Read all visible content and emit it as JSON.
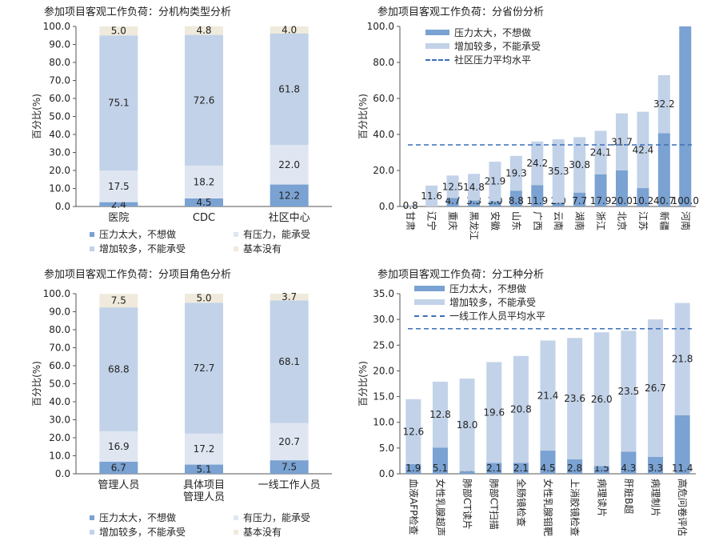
{
  "colors": {
    "dark": "#7aa2d2",
    "mid": "#c2d2e8",
    "light": "#dfe6f1",
    "beige": "#efeadb",
    "dash": "#3d6fb8"
  },
  "panels": {
    "p1": {
      "title": "参加项目客观工作负荷：分机构类型分析"
    },
    "p2": {
      "title": "参加项目客观工作负荷：分省份分析"
    },
    "p3": {
      "title": "参加项目客观工作负荷：分项目角色分析"
    },
    "p4": {
      "title": "参加项目客观工作负荷：分工种分析"
    }
  },
  "legend_bottom": {
    "dark": "压力太大，不想做",
    "mid": "增加较多，不能承受",
    "light": "有压力，能承受",
    "beige": "基本没有"
  },
  "legend_p2": {
    "dark": "压力太大，不想做",
    "mid": "增加较多，不能承受",
    "line": "社区压力平均水平"
  },
  "legend_p4": {
    "dark": "压力太大，不想做",
    "mid": "增加较多，不能承受",
    "line": "一线工作人员平均水平"
  },
  "chart_data": [
    {
      "id": "p1",
      "type": "bar",
      "stacked": true,
      "ylabel": "百分比(%)",
      "ylim": [
        0,
        100
      ],
      "yticks": [
        "0.0",
        "10.0",
        "20.0",
        "30.0",
        "40.0",
        "50.0",
        "60.0",
        "70.0",
        "80.0",
        "90.0",
        "100.0"
      ],
      "categories": [
        "医院",
        "CDC",
        "社区中心"
      ],
      "series": [
        {
          "name": "压力太大，不想做",
          "color_key": "dark",
          "values": [
            2.4,
            4.5,
            12.2
          ],
          "labels": [
            "2.4",
            "4.5",
            "12.2"
          ]
        },
        {
          "name": "有压力，能承受",
          "color_key": "light",
          "values": [
            17.5,
            18.2,
            22.0
          ],
          "labels": [
            "17.5",
            "18.2",
            "22.0"
          ]
        },
        {
          "name": "增加较多，不能承受",
          "color_key": "mid",
          "values": [
            75.1,
            72.6,
            61.8
          ],
          "labels": [
            "75.1",
            "72.6",
            "61.8"
          ]
        },
        {
          "name": "基本没有",
          "color_key": "beige",
          "values": [
            5.0,
            4.8,
            4.0
          ],
          "labels": [
            "5.0",
            "4.8",
            "4.0"
          ]
        }
      ]
    },
    {
      "id": "p2",
      "type": "bar",
      "stacked": true,
      "ylabel": "百分比(%)",
      "ylim": [
        0,
        100
      ],
      "yticks": [
        "0.0",
        "20.0",
        "40.0",
        "60.0",
        "80.0",
        "100.0"
      ],
      "categories": [
        "甘肃",
        "辽宁",
        "重庆",
        "黑龙江",
        "安徽",
        "山东",
        "广西",
        "云南",
        "湖南",
        "浙江",
        "北京",
        "江苏",
        "新疆",
        "河南"
      ],
      "series": [
        {
          "name": "压力太大，不想做",
          "color_key": "dark",
          "values": [
            0,
            0,
            4.7,
            3.3,
            3.0,
            8.8,
            11.9,
            2.0,
            7.7,
            17.9,
            20.0,
            10.2,
            40.7,
            100.0
          ],
          "labels": [
            "0.0",
            "0.0",
            "4.7",
            "3.3",
            "3.0",
            "8.8",
            "11.9",
            "2.0",
            "7.7",
            "17.9",
            "20.0",
            "10.2",
            "40.7",
            "100.0"
          ]
        },
        {
          "name": "增加较多，不能承受",
          "color_key": "mid",
          "values": [
            0.8,
            11.6,
            12.5,
            14.8,
            21.9,
            19.3,
            24.2,
            35.3,
            30.8,
            24.1,
            31.7,
            42.4,
            32.2,
            0
          ],
          "labels": [
            "0.8",
            "11.6",
            "12.5",
            "14.8",
            "21.9",
            "19.3",
            "24.2",
            "35.3",
            "30.8",
            "24.1",
            "31.7",
            "42.4",
            "32.2",
            "0.0"
          ]
        }
      ],
      "reference_line": {
        "name": "社区压力平均水平",
        "value": 34.2
      }
    },
    {
      "id": "p3",
      "type": "bar",
      "stacked": true,
      "ylabel": "百分比(%)",
      "ylim": [
        0,
        100
      ],
      "yticks": [
        "0.0",
        "10.0",
        "20.0",
        "30.0",
        "40.0",
        "50.0",
        "60.0",
        "70.0",
        "80.0",
        "90.0",
        "100.0"
      ],
      "categories": [
        "管理人员",
        "具体项目\n管理人员",
        "一线工作人员"
      ],
      "series": [
        {
          "name": "压力太大，不想做",
          "color_key": "dark",
          "values": [
            6.7,
            5.1,
            7.5
          ],
          "labels": [
            "6.7",
            "5.1",
            "7.5"
          ]
        },
        {
          "name": "有压力，能承受",
          "color_key": "light",
          "values": [
            16.9,
            17.2,
            20.7
          ],
          "labels": [
            "16.9",
            "17.2",
            "20.7"
          ]
        },
        {
          "name": "增加较多，不能承受",
          "color_key": "mid",
          "values": [
            68.8,
            72.7,
            68.1
          ],
          "labels": [
            "68.8",
            "72.7",
            "68.1"
          ]
        },
        {
          "name": "基本没有",
          "color_key": "beige",
          "values": [
            7.5,
            5.0,
            3.7
          ],
          "labels": [
            "7.5",
            "5.0",
            "3.7"
          ]
        }
      ]
    },
    {
      "id": "p4",
      "type": "bar",
      "stacked": true,
      "ylabel": "百分比(%)",
      "ylim": [
        0,
        35
      ],
      "yticks": [
        "0.0",
        "5.0",
        "10.0",
        "15.0",
        "20.0",
        "25.0",
        "30.0",
        "35.0"
      ],
      "categories": [
        "血液AFP检查",
        "女性乳腺超声",
        "肺部CT读片",
        "肺部CT扫描",
        "全肠镜检查",
        "女性乳腺钼靶",
        "上消胶镜检查",
        "病理读片",
        "肝脏B超",
        "病理制片",
        "高危问卷评估"
      ],
      "series": [
        {
          "name": "压力太大，不想做",
          "color_key": "dark",
          "values": [
            1.9,
            5.1,
            0.5,
            2.1,
            2.1,
            4.5,
            2.8,
            1.5,
            4.3,
            3.3,
            11.4
          ],
          "labels": [
            "1.9",
            "5.1",
            "0.5",
            "2.1",
            "2.1",
            "4.5",
            "2.8",
            "1.5",
            "4.3",
            "3.3",
            "11.4"
          ]
        },
        {
          "name": "增加较多，不能承受",
          "color_key": "mid",
          "values": [
            12.6,
            12.8,
            18.0,
            19.6,
            20.8,
            21.4,
            23.6,
            26.0,
            23.5,
            26.7,
            21.8
          ],
          "labels": [
            "12.6",
            "12.8",
            "18.0",
            "19.6",
            "20.8",
            "21.4",
            "23.6",
            "26.0",
            "23.5",
            "26.7",
            "21.8"
          ]
        }
      ],
      "reference_line": {
        "name": "一线工作人员平均水平",
        "value": 28.2
      }
    }
  ]
}
